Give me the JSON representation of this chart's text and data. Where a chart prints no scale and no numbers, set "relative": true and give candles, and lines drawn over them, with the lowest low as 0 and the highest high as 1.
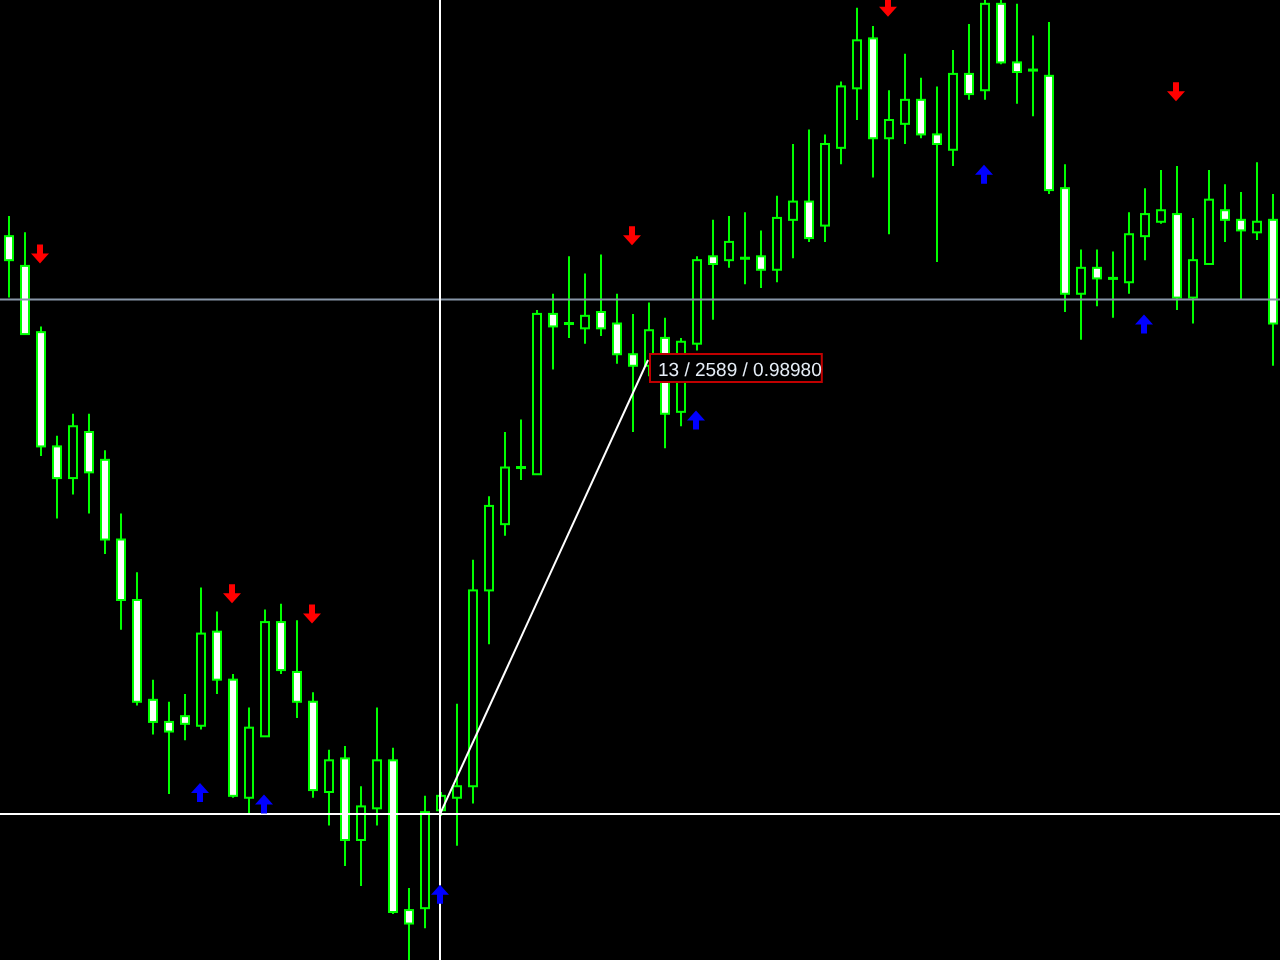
{
  "chart_data": {
    "type": "candlestick",
    "relative": true,
    "color": "#00ff00",
    "categories": [
      null,
      null,
      null,
      null,
      null,
      null,
      null,
      null,
      null,
      null,
      null,
      null,
      null,
      null,
      null,
      null,
      null,
      null,
      null,
      null,
      null,
      null,
      null,
      null,
      null,
      null,
      null,
      null,
      null,
      null,
      null,
      null,
      null,
      null,
      null,
      null,
      null,
      null,
      null,
      null,
      null,
      null,
      null,
      null,
      null,
      null,
      null,
      null,
      null,
      null,
      null,
      null,
      null,
      null,
      null,
      null,
      null,
      null,
      null,
      null,
      null,
      null,
      null,
      null,
      null,
      null,
      null,
      null,
      null,
      null,
      null,
      null,
      null,
      null,
      null,
      null,
      null,
      null,
      null,
      null
    ],
    "ohlc": [
      [
        0.754,
        0.775,
        0.69,
        0.729
      ],
      [
        0.723,
        0.758,
        0.652,
        0.652
      ],
      [
        0.654,
        0.66,
        0.525,
        0.535
      ],
      [
        0.535,
        0.546,
        0.46,
        0.502
      ],
      [
        0.502,
        0.569,
        0.485,
        0.556
      ],
      [
        0.55,
        0.569,
        0.465,
        0.508
      ],
      [
        0.521,
        0.531,
        0.423,
        0.438
      ],
      [
        0.438,
        0.465,
        0.344,
        0.375
      ],
      [
        0.375,
        0.404,
        0.265,
        0.269
      ],
      [
        0.271,
        0.292,
        0.235,
        0.248
      ],
      [
        0.248,
        0.269,
        0.173,
        0.238
      ],
      [
        0.254,
        0.277,
        0.229,
        0.246
      ],
      [
        0.244,
        0.388,
        0.24,
        0.34
      ],
      [
        0.342,
        0.363,
        0.277,
        0.292
      ],
      [
        0.292,
        0.298,
        0.169,
        0.171
      ],
      [
        0.169,
        0.263,
        0.152,
        0.242
      ],
      [
        0.233,
        0.365,
        0.233,
        0.352
      ],
      [
        0.352,
        0.371,
        0.298,
        0.302
      ],
      [
        0.3,
        0.354,
        0.252,
        0.269
      ],
      [
        0.269,
        0.279,
        0.169,
        0.177
      ],
      [
        0.175,
        0.219,
        0.14,
        0.208
      ],
      [
        0.21,
        0.223,
        0.098,
        0.125
      ],
      [
        0.125,
        0.181,
        0.077,
        0.16
      ],
      [
        0.158,
        0.263,
        0.14,
        0.208
      ],
      [
        0.208,
        0.221,
        0.048,
        0.05
      ],
      [
        0.052,
        0.075,
        0,
        0.038
      ],
      [
        0.054,
        0.171,
        0.033,
        0.154
      ],
      [
        0.156,
        0.175,
        0.15,
        0.171
      ],
      [
        0.169,
        0.267,
        0.119,
        0.181
      ],
      [
        0.181,
        0.417,
        0.163,
        0.385
      ],
      [
        0.385,
        0.483,
        0.329,
        0.473
      ],
      [
        0.454,
        0.55,
        0.442,
        0.513
      ],
      [
        0.513,
        0.563,
        0.5,
        0.513
      ],
      [
        0.506,
        0.677,
        0.506,
        0.673
      ],
      [
        0.673,
        0.694,
        0.615,
        0.66
      ],
      [
        0.663,
        0.733,
        0.648,
        0.663
      ],
      [
        0.658,
        0.715,
        0.642,
        0.671
      ],
      [
        0.675,
        0.735,
        0.65,
        0.658
      ],
      [
        0.663,
        0.694,
        0.621,
        0.631
      ],
      [
        0.631,
        0.673,
        0.55,
        0.619
      ],
      [
        0.619,
        0.685,
        0.608,
        0.656
      ],
      [
        0.648,
        0.669,
        0.533,
        0.569
      ],
      [
        0.571,
        0.648,
        0.556,
        0.644
      ],
      [
        0.642,
        0.733,
        0.635,
        0.729
      ],
      [
        0.733,
        0.771,
        0.667,
        0.725
      ],
      [
        0.729,
        0.775,
        0.721,
        0.748
      ],
      [
        0.731,
        0.779,
        0.704,
        0.731
      ],
      [
        0.733,
        0.76,
        0.7,
        0.719
      ],
      [
        0.719,
        0.796,
        0.706,
        0.773
      ],
      [
        0.771,
        0.85,
        0.731,
        0.79
      ],
      [
        0.79,
        0.865,
        0.748,
        0.752
      ],
      [
        0.765,
        0.86,
        0.748,
        0.85
      ],
      [
        0.846,
        0.915,
        0.829,
        0.91
      ],
      [
        0.908,
        0.992,
        0.875,
        0.958
      ],
      [
        0.96,
        0.973,
        0.815,
        0.856
      ],
      [
        0.856,
        0.906,
        0.756,
        0.875
      ],
      [
        0.871,
        0.944,
        0.85,
        0.896
      ],
      [
        0.896,
        0.919,
        0.856,
        0.86
      ],
      [
        0.86,
        0.91,
        0.727,
        0.85
      ],
      [
        0.844,
        0.948,
        0.827,
        0.923
      ],
      [
        0.923,
        0.975,
        0.896,
        0.902
      ],
      [
        0.906,
        1,
        0.896,
        0.996
      ],
      [
        0.996,
        1,
        0.933,
        0.935
      ],
      [
        0.935,
        0.996,
        0.892,
        0.925
      ],
      [
        0.927,
        0.963,
        0.879,
        0.927
      ],
      [
        0.921,
        0.977,
        0.798,
        0.802
      ],
      [
        0.804,
        0.829,
        0.675,
        0.694
      ],
      [
        0.694,
        0.74,
        0.646,
        0.721
      ],
      [
        0.721,
        0.74,
        0.681,
        0.71
      ],
      [
        0.71,
        0.738,
        0.669,
        0.71
      ],
      [
        0.706,
        0.779,
        0.694,
        0.756
      ],
      [
        0.754,
        0.804,
        0.729,
        0.777
      ],
      [
        0.769,
        0.823,
        0.767,
        0.781
      ],
      [
        0.777,
        0.827,
        0.677,
        0.69
      ],
      [
        0.69,
        0.773,
        0.663,
        0.729
      ],
      [
        0.725,
        0.823,
        0.725,
        0.792
      ],
      [
        0.781,
        0.808,
        0.748,
        0.771
      ],
      [
        0.771,
        0.8,
        0.688,
        0.76
      ],
      [
        0.758,
        0.831,
        0.75,
        0.769
      ],
      [
        0.771,
        0.798,
        0.619,
        0.663
      ]
    ],
    "series": [
      {
        "type": "scatter",
        "color": "#ff0000",
        "marker": "triangle",
        "values": [
          null,
          null,
          0.735,
          null,
          null,
          null,
          null,
          null,
          null,
          null,
          null,
          null,
          null,
          null,
          0.381,
          null,
          null,
          null,
          null,
          0.36,
          null,
          null,
          null,
          null,
          null,
          null,
          null,
          null,
          null,
          null,
          null,
          null,
          null,
          null,
          null,
          null,
          null,
          null,
          null,
          0.754,
          null,
          null,
          null,
          null,
          null,
          null,
          null,
          null,
          null,
          null,
          null,
          null,
          null,
          null,
          null,
          0.992,
          null,
          null,
          null,
          null,
          null,
          null,
          null,
          null,
          null,
          null,
          null,
          null,
          null,
          null,
          null,
          null,
          null,
          0.904,
          null,
          null,
          null,
          null,
          null,
          null
        ]
      },
      {
        "type": "scatter",
        "color": "#0000ff",
        "marker": "triangle",
        "values": [
          null,
          null,
          null,
          null,
          null,
          null,
          null,
          null,
          null,
          null,
          null,
          null,
          0.175,
          null,
          null,
          null,
          0.163,
          null,
          null,
          null,
          null,
          null,
          null,
          null,
          null,
          null,
          null,
          0.069,
          null,
          null,
          null,
          null,
          null,
          null,
          null,
          null,
          null,
          null,
          null,
          null,
          null,
          null,
          null,
          0.563,
          null,
          null,
          null,
          null,
          null,
          null,
          null,
          null,
          null,
          null,
          null,
          null,
          null,
          null,
          null,
          null,
          null,
          0.819,
          null,
          null,
          null,
          null,
          null,
          null,
          null,
          null,
          null,
          0.663,
          null,
          null,
          null,
          null,
          null,
          null,
          null,
          null
        ]
      },
      {
        "type": "line",
        "color": "#ffffff",
        "line_style": "solid",
        "values": [
          null,
          null,
          null,
          null,
          null,
          null,
          null,
          null,
          null,
          null,
          null,
          null,
          null,
          null,
          null,
          null,
          null,
          null,
          null,
          null,
          null,
          null,
          null,
          null,
          null,
          null,
          null,
          0.152,
          null,
          null,
          null,
          null,
          null,
          null,
          null,
          null,
          null,
          null,
          null,
          null,
          0.625,
          null,
          null,
          null,
          null,
          null,
          null,
          null,
          null,
          null,
          null,
          null,
          null,
          null,
          null,
          null,
          null,
          null,
          null,
          null,
          null,
          null,
          null,
          null,
          null,
          null,
          null,
          null,
          null,
          null,
          null,
          null,
          null,
          null,
          null,
          null,
          null,
          null,
          null,
          null
        ]
      }
    ],
    "ref_lines": [
      {
        "axis": "y",
        "value": 0.688,
        "color": "#8796a8"
      },
      {
        "axis": "y",
        "value": 0.152,
        "color": "#ffffff"
      }
    ],
    "annotations": [
      "13 / 2589 / 0.98980"
    ]
  }
}
